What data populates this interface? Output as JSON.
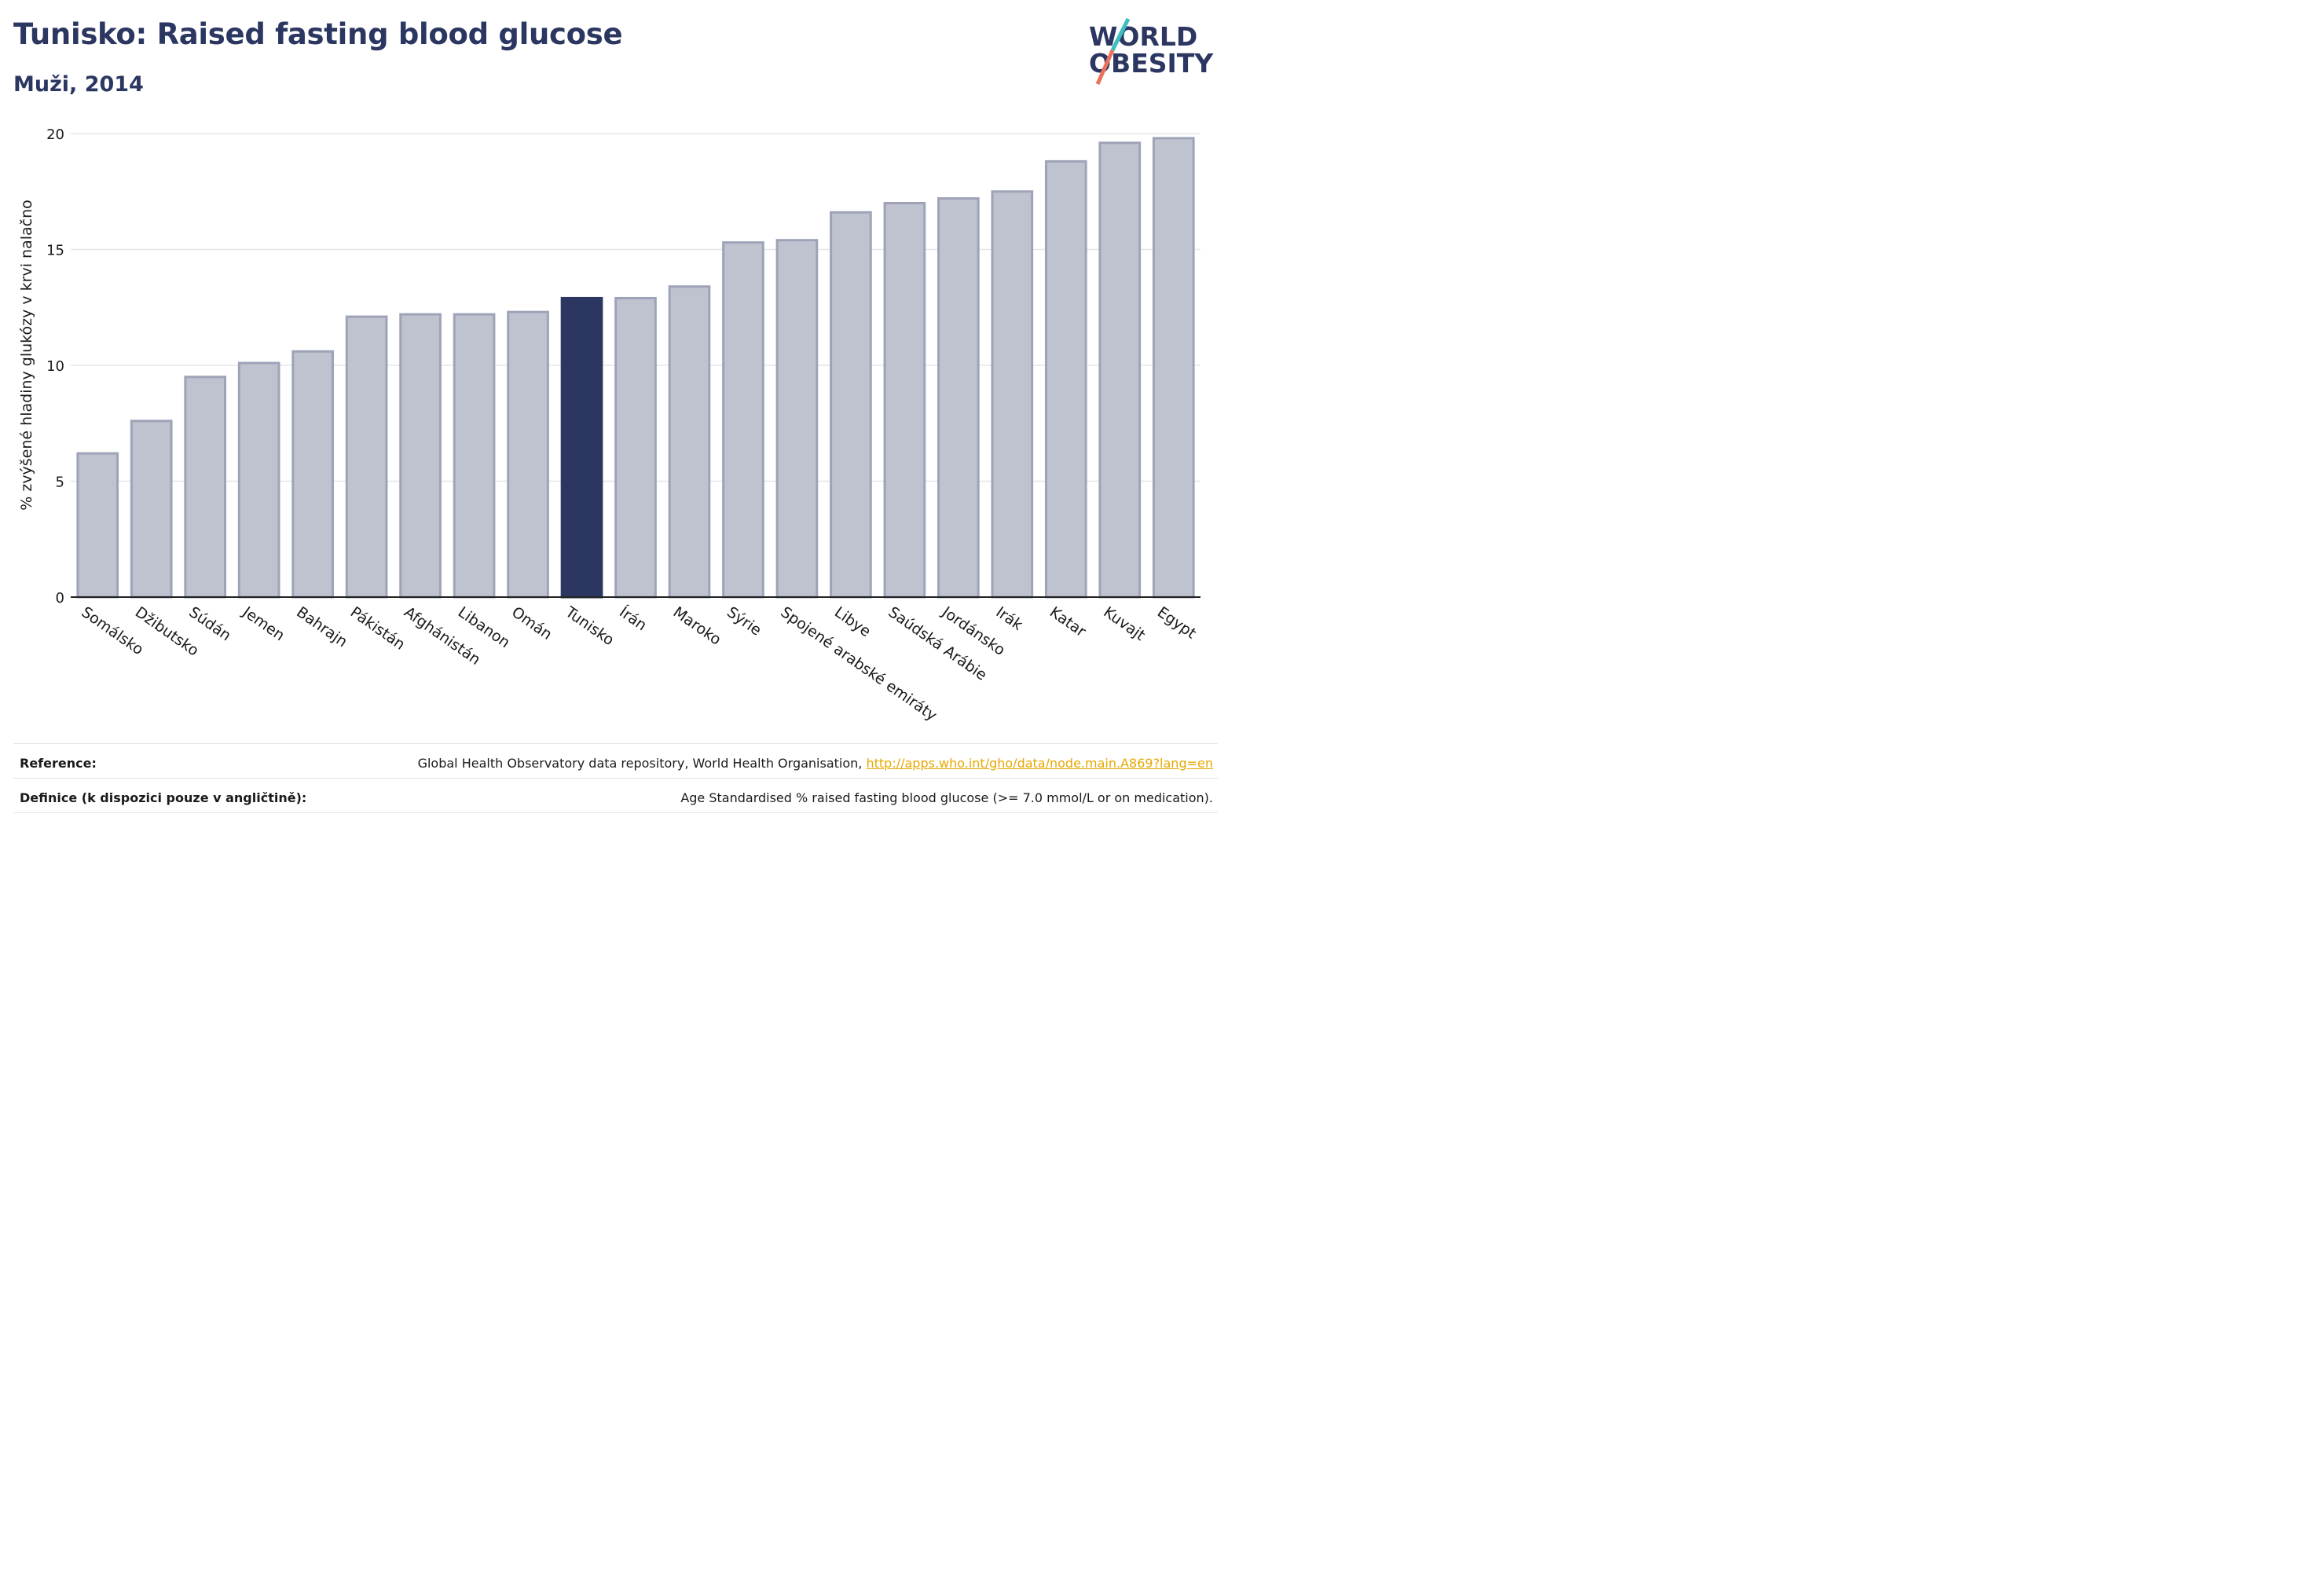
{
  "header": {
    "title": "Tunisko: Raised fasting blood glucose",
    "subtitle": "Muži, 2014"
  },
  "logo": {
    "line1": "WORLD",
    "line2": "OBESITY",
    "colors": {
      "text": "#2b3661",
      "slash_top": "#3dbfbf",
      "slash_bottom": "#e8735a"
    }
  },
  "colors": {
    "bar_default": "#bfc2cf",
    "bar_default_stroke": "#9ea3b8",
    "bar_highlight": "#2b3661",
    "grid": "#e6e6e6",
    "axis": "#222222"
  },
  "chart_data": {
    "type": "bar",
    "ylabel": "% zvýšené hladiny glukózy v krvi nalačno",
    "ylim": [
      0,
      20
    ],
    "yticks": [
      0,
      5,
      10,
      15,
      20
    ],
    "grid": true,
    "highlight": "Tunisko",
    "categories": [
      "Somálsko",
      "Džibutsko",
      "Súdán",
      "Jemen",
      "Bahrajn",
      "Pákistán",
      "Afghánistán",
      "Libanon",
      "Omán",
      "Tunisko",
      "Írán",
      "Maroko",
      "Sýrie",
      "Spojené arabské emiráty",
      "Libye",
      "Saúdská Arábie",
      "Jordánsko",
      "Irák",
      "Katar",
      "Kuvajt",
      "Egypt"
    ],
    "values": [
      6.2,
      7.6,
      9.5,
      10.1,
      10.6,
      12.1,
      12.2,
      12.2,
      12.3,
      12.9,
      12.9,
      13.4,
      15.3,
      15.4,
      16.6,
      17.0,
      17.2,
      17.5,
      18.8,
      19.6,
      19.8
    ]
  },
  "footer": {
    "reference_label": "Reference:",
    "reference_text": "Global Health Observatory data repository, World Health Organisation,",
    "reference_link": "http://apps.who.int/gho/data/node.main.A869?lang=en",
    "definition_label": "Definice (k dispozici pouze v angličtině):",
    "definition_text": "Age Standardised % raised fasting blood glucose (>= 7.0 mmol/L or on medication)."
  }
}
